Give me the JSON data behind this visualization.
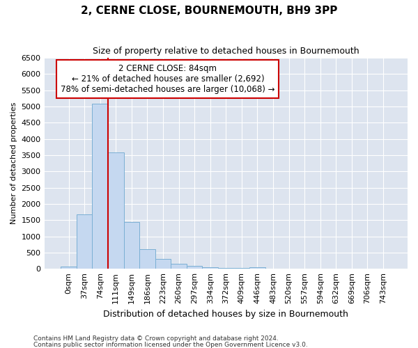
{
  "title": "2, CERNE CLOSE, BOURNEMOUTH, BH9 3PP",
  "subtitle": "Size of property relative to detached houses in Bournemouth",
  "xlabel": "Distribution of detached houses by size in Bournemouth",
  "ylabel": "Number of detached properties",
  "categories": [
    "0sqm",
    "37sqm",
    "74sqm",
    "111sqm",
    "149sqm",
    "186sqm",
    "223sqm",
    "260sqm",
    "297sqm",
    "334sqm",
    "372sqm",
    "409sqm",
    "446sqm",
    "483sqm",
    "520sqm",
    "557sqm",
    "594sqm",
    "632sqm",
    "669sqm",
    "706sqm",
    "743sqm"
  ],
  "values": [
    60,
    1670,
    5080,
    3590,
    1430,
    610,
    300,
    155,
    100,
    55,
    30,
    20,
    50,
    0,
    0,
    0,
    0,
    0,
    0,
    0,
    0
  ],
  "bar_color": "#c5d8f0",
  "bar_edge_color": "#7aafd4",
  "figure_bg": "#ffffff",
  "axes_bg": "#dde4ef",
  "grid_color": "#ffffff",
  "annotation_box_color": "#ffffff",
  "annotation_box_edge": "#cc0000",
  "annotation_line1": "2 CERNE CLOSE: 84sqm",
  "annotation_line2": "← 21% of detached houses are smaller (2,692)",
  "annotation_line3": "78% of semi-detached houses are larger (10,068) →",
  "vline_x": 2.5,
  "vline_color": "#cc0000",
  "ylim": [
    0,
    6500
  ],
  "yticks": [
    0,
    500,
    1000,
    1500,
    2000,
    2500,
    3000,
    3500,
    4000,
    4500,
    5000,
    5500,
    6000,
    6500
  ],
  "footnote1": "Contains HM Land Registry data © Crown copyright and database right 2024.",
  "footnote2": "Contains public sector information licensed under the Open Government Licence v3.0.",
  "title_fontsize": 11,
  "subtitle_fontsize": 9,
  "xlabel_fontsize": 9,
  "ylabel_fontsize": 8,
  "tick_fontsize": 8,
  "annot_fontsize": 8.5,
  "footnote_fontsize": 6.5
}
